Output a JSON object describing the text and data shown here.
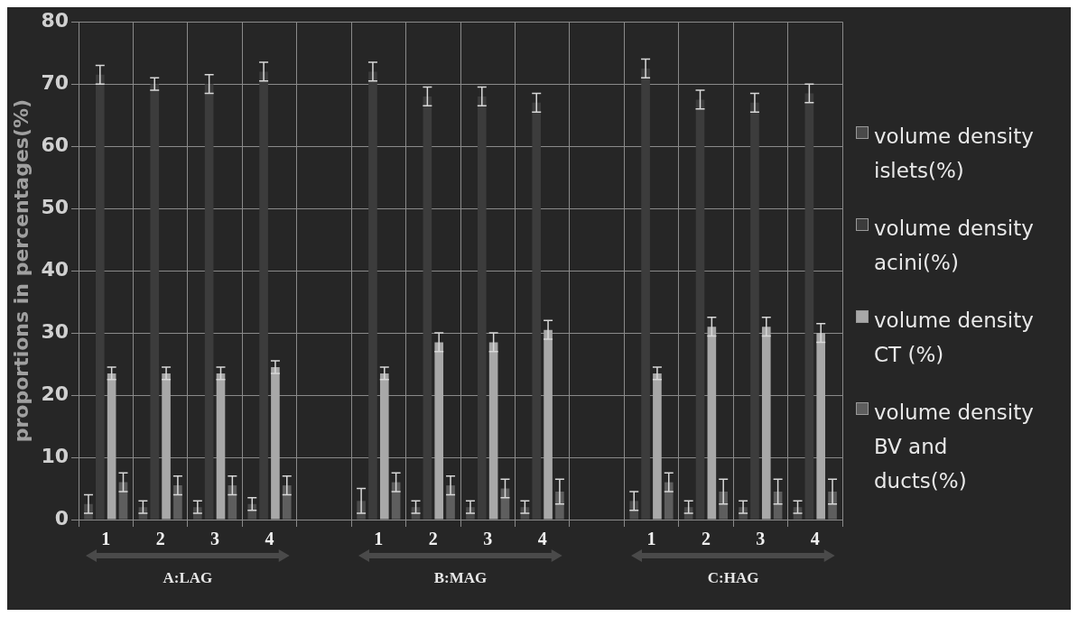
{
  "chart_data": {
    "type": "bar",
    "ylabel": "proportions in percentages(%)",
    "categories": [
      "1",
      "2",
      "3",
      "4",
      null,
      "1",
      "2",
      "3",
      "4",
      null,
      "1",
      "2",
      "3",
      "4"
    ],
    "series": [
      {
        "name": "volume density islets(%)",
        "color": "#4a4a4a",
        "values": [
          2.5,
          2,
          2,
          2.5,
          null,
          3,
          2,
          2,
          2,
          null,
          3,
          2,
          2,
          2
        ],
        "errors": [
          1.5,
          1,
          1,
          1,
          null,
          2,
          1,
          1,
          1,
          null,
          1.5,
          1,
          1,
          1
        ]
      },
      {
        "name": "volume density acini(%)",
        "color": "#3c3c3c",
        "values": [
          71.5,
          70,
          70,
          72,
          null,
          72,
          68,
          68,
          67,
          null,
          72.5,
          67.5,
          67,
          68.5
        ],
        "errors": [
          1.5,
          1,
          1.5,
          1.5,
          null,
          1.5,
          1.5,
          1.5,
          1.5,
          null,
          1.5,
          1.5,
          1.5,
          1.5
        ]
      },
      {
        "name": "volume density CT (%)",
        "color": "#a8a8a8",
        "values": [
          23.5,
          23.5,
          23.5,
          24.5,
          null,
          23.5,
          28.5,
          28.5,
          30.5,
          null,
          23.5,
          31,
          31,
          30
        ],
        "errors": [
          1,
          1,
          1,
          1,
          null,
          1,
          1.5,
          1.5,
          1.5,
          null,
          1,
          1.5,
          1.5,
          1.5
        ]
      },
      {
        "name": "volume density BV and ducts(%)",
        "color": "#5e5e5e",
        "values": [
          6,
          5.5,
          5.5,
          5.5,
          null,
          6,
          5.5,
          5,
          4.5,
          null,
          6,
          4.5,
          4.5,
          4.5
        ],
        "errors": [
          1.5,
          1.5,
          1.5,
          1.5,
          null,
          1.5,
          1.5,
          1.5,
          2,
          null,
          1.5,
          2,
          2,
          2
        ]
      }
    ],
    "ylim": [
      0,
      80
    ],
    "yticks": [
      0,
      10,
      20,
      30,
      40,
      50,
      60,
      70,
      80
    ],
    "grid": true,
    "legend": "right",
    "annotations": [
      "A:LAG",
      "B:MAG",
      "C:HAG"
    ]
  }
}
